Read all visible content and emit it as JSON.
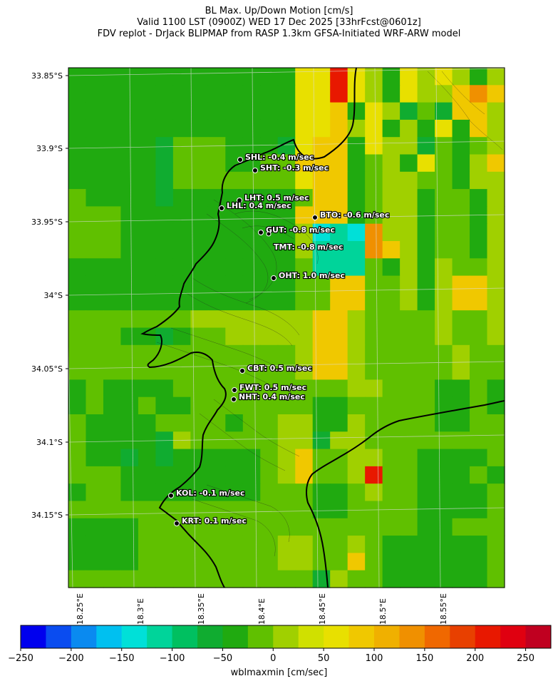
{
  "title": {
    "line1": "BL Max. Up/Down Motion [cm/s]",
    "line2": "Valid 1100 LST (0900Z) WED 17 Dec 2025 [33hrFcst@0601z]",
    "line3": "FDV replot - DrJack BLIPMAP from RASP 1.3km GFSA-Initiated WRF-ARW model"
  },
  "map": {
    "lat_labels": [
      "33.85°S",
      "33.9°S",
      "33.95°S",
      "34°S",
      "34.05°S",
      "34.1°S",
      "34.15°S"
    ],
    "lon_labels": [
      "18.25°E",
      "18.3°E",
      "18.35°E",
      "18.4°E",
      "18.45°E",
      "18.5°E",
      "18.55°E"
    ],
    "stations": [
      {
        "code": "SHL",
        "label": "SHL: -0.4 m/sec"
      },
      {
        "code": "SHT",
        "label": "SHT: -0.3 m/sec"
      },
      {
        "code": "LHT",
        "label": "LHT: 0.5 m/sec"
      },
      {
        "code": "LHL",
        "label": "LHL: 0.4 m/sec"
      },
      {
        "code": "BTO",
        "label": "BTO: -0.6 m/sec"
      },
      {
        "code": "GUT",
        "label": "GUT: -0.8 m/sec"
      },
      {
        "code": "TMT",
        "label": "TMT: -0.8 m/sec"
      },
      {
        "code": "OHT",
        "label": "OHT: 1.0 m/sec"
      },
      {
        "code": "CBT",
        "label": "CBT: 0.5 m/sec"
      },
      {
        "code": "FWT",
        "label": "FWT: 0.5 m/sec"
      },
      {
        "code": "NHT",
        "label": "NHT: 0.4 m/sec"
      },
      {
        "code": "KOL",
        "label": "KOL: -0.1 m/sec"
      },
      {
        "code": "KRT",
        "label": "KRT: 0.1 m/sec"
      }
    ]
  },
  "colorbar": {
    "label": "wblmaxmin [cm/sec]",
    "ticks": [
      "−250",
      "−200",
      "−150",
      "−100",
      "−50",
      "0",
      "50",
      "100",
      "150",
      "200",
      "250"
    ],
    "colors": [
      "#0000ee",
      "#0a4cf0",
      "#0a8af0",
      "#00c0f0",
      "#00e0d8",
      "#00d49a",
      "#00c060",
      "#10ac30",
      "#20aa10",
      "#60c000",
      "#a0d000",
      "#d0e000",
      "#e8e000",
      "#f0c800",
      "#f0b000",
      "#f09000",
      "#f06800",
      "#e84000",
      "#e81800",
      "#e00010",
      "#c00020"
    ]
  },
  "field": {
    "cols": 25,
    "rows": 30,
    "cells": [
      "GGGGGGGGGGGGGyyRyYGyYyYGY",
      "GGGGGGGGGGGGGyyRyYGyYYOTO",
      "GGGGGGGGGGGGGyyOGyYgLgOOY",
      "GGGGGGGGGGGGGyyOYyGYGyGOY",
      "GGGGGgLLLGGGgyOOGyYYgLGLY",
      "GGGGGgLLLGGLLOOOGLYGyLGYO",
      "GGGGGgLLLLLLLyOOGLYYLLGYY",
      "LGGGGgGGGGGGGLOOGLYYGLLGY",
      "LLLGGGGGGGGGGOOOGLYYGLLGY",
      "LLLGGGGGGGGGGYcCcTYYGLLGY",
      "LLLGGGGGGGGGGYCCCTOYGLLGY",
      "GGGGGGGGGGGGGLCCCLGYGYLLY",
      "GGGGGGGGGGGGGLLOOLLYGYOOY",
      "GGGGGGGGGGGGGLLOOLLYGYOOY",
      "LLLLLLLYYYYYYYOOYLLLLYLLY",
      "LLLGGgGLLYYYYYOOYLLLLYLLY",
      "LLLLLLLLLLLLLYOOYLLLLLYLL",
      "LLLLLLLLLLLLLYOOYLLLLLYLL",
      "GLGGGGLLLLLLLLLLYYLLLGGLG",
      "GLGGLGGLLLLLLLGGLLLLLGGLG",
      "LGGGGLLLLGLLYYGGYLLLLGGLL",
      "LGGGGgYLLLLLYYgYYLLLLLLLL",
      "LGGgGgGGGGGLYOLLYYLLGGGGL",
      "LLLGGGGGGGGLYOLLYRLLGGGLG",
      "GLLGGGGGGGGLLLGGLYLLGGGGL",
      "LLLLLLLLLLLLLLGGLLLLGGGGL",
      "GGGGLLLLLLLLLLLLLLLLGGLLL",
      "GGGGLLLLLLLLYYLLYLGGGGGGL",
      "GGGGLLLLLLLLYYLLOLGGGGGGL",
      "LLLLLLLLLLLLLLgYLLGGGGGGL"
    ],
    "palette": {
      "G": "#20aa10",
      "g": "#10ac30",
      "L": "#60c000",
      "l": "#a0d000",
      "Y": "#a0d000",
      "y": "#e8e000",
      "O": "#f0c800",
      "T": "#f09000",
      "R": "#e81800",
      "c": "#00e0d8",
      "C": "#00d49a"
    }
  }
}
